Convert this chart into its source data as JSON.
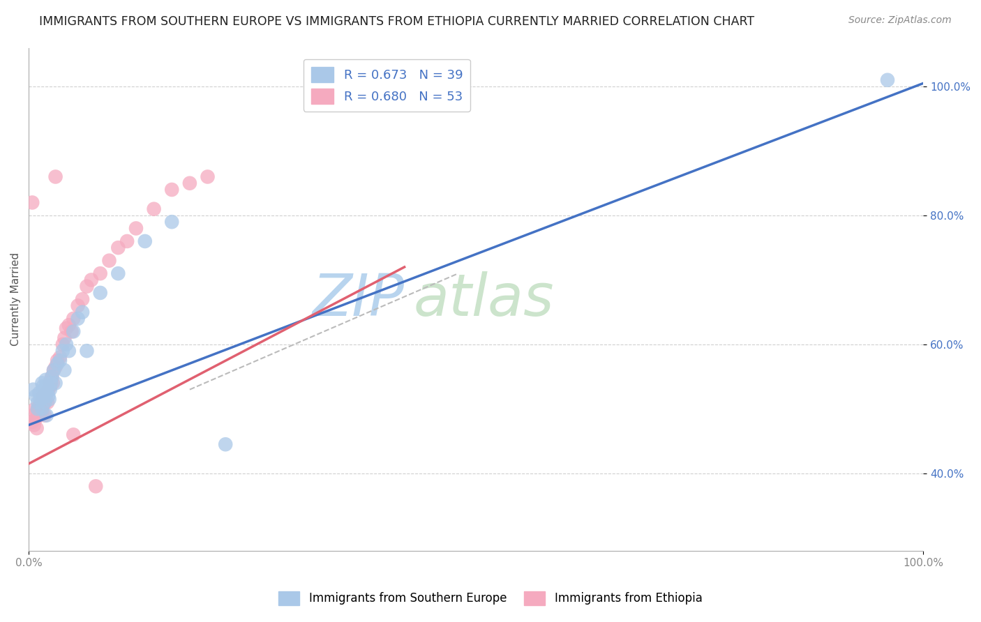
{
  "title": "IMMIGRANTS FROM SOUTHERN EUROPE VS IMMIGRANTS FROM ETHIOPIA CURRENTLY MARRIED CORRELATION CHART",
  "source": "Source: ZipAtlas.com",
  "ylabel": "Currently Married",
  "watermark": "ZIPatlas",
  "legend1_label": "R = 0.673   N = 39",
  "legend2_label": "R = 0.680   N = 53",
  "series1_name": "Immigrants from Southern Europe",
  "series2_name": "Immigrants from Ethiopia",
  "series1_color": "#aac8e8",
  "series2_color": "#f5aabf",
  "line1_color": "#4472c4",
  "line2_color": "#e06070",
  "xlim": [
    0,
    1.0
  ],
  "ylim": [
    0.28,
    1.06
  ],
  "ytick_positions": [
    0.4,
    0.6,
    0.8,
    1.0
  ],
  "ytick_labels": [
    "40.0%",
    "60.0%",
    "80.0%",
    "100.0%"
  ],
  "xtick_positions": [
    0.0,
    1.0
  ],
  "xtick_labels": [
    "0.0%",
    "100.0%"
  ],
  "grid_color": "#d0d0d0",
  "background_color": "#ffffff",
  "title_fontsize": 12.5,
  "source_fontsize": 10,
  "axis_label_fontsize": 11,
  "tick_fontsize": 11,
  "watermark_fontsize": 60,
  "watermark_color": "#cce0f0",
  "blue_dot_x": [
    0.005,
    0.008,
    0.01,
    0.01,
    0.012,
    0.013,
    0.015,
    0.015,
    0.016,
    0.017,
    0.018,
    0.018,
    0.019,
    0.02,
    0.02,
    0.021,
    0.022,
    0.023,
    0.024,
    0.025,
    0.026,
    0.028,
    0.03,
    0.032,
    0.035,
    0.038,
    0.04,
    0.042,
    0.045,
    0.05,
    0.055,
    0.06,
    0.065,
    0.08,
    0.1,
    0.13,
    0.16,
    0.22,
    0.96
  ],
  "blue_dot_y": [
    0.53,
    0.52,
    0.5,
    0.51,
    0.525,
    0.515,
    0.54,
    0.5,
    0.535,
    0.53,
    0.51,
    0.52,
    0.545,
    0.49,
    0.535,
    0.53,
    0.52,
    0.515,
    0.53,
    0.54,
    0.55,
    0.56,
    0.54,
    0.57,
    0.575,
    0.59,
    0.56,
    0.6,
    0.59,
    0.62,
    0.64,
    0.65,
    0.59,
    0.68,
    0.71,
    0.76,
    0.79,
    0.445,
    1.01
  ],
  "pink_dot_x": [
    0.004,
    0.005,
    0.006,
    0.007,
    0.008,
    0.009,
    0.01,
    0.011,
    0.012,
    0.013,
    0.014,
    0.015,
    0.016,
    0.016,
    0.017,
    0.018,
    0.018,
    0.019,
    0.02,
    0.021,
    0.022,
    0.023,
    0.024,
    0.025,
    0.026,
    0.027,
    0.028,
    0.03,
    0.032,
    0.035,
    0.038,
    0.04,
    0.042,
    0.045,
    0.048,
    0.05,
    0.055,
    0.06,
    0.065,
    0.07,
    0.08,
    0.09,
    0.1,
    0.11,
    0.12,
    0.14,
    0.16,
    0.18,
    0.2,
    0.05,
    0.075,
    0.03,
    0.004
  ],
  "pink_dot_y": [
    0.48,
    0.49,
    0.475,
    0.5,
    0.485,
    0.47,
    0.5,
    0.49,
    0.505,
    0.495,
    0.51,
    0.495,
    0.52,
    0.505,
    0.515,
    0.51,
    0.49,
    0.52,
    0.525,
    0.51,
    0.53,
    0.54,
    0.535,
    0.545,
    0.55,
    0.54,
    0.56,
    0.565,
    0.575,
    0.58,
    0.6,
    0.61,
    0.625,
    0.63,
    0.62,
    0.64,
    0.66,
    0.67,
    0.69,
    0.7,
    0.71,
    0.73,
    0.75,
    0.76,
    0.78,
    0.81,
    0.84,
    0.85,
    0.86,
    0.46,
    0.38,
    0.86,
    0.82
  ],
  "blue_line_x0": 0.0,
  "blue_line_y0": 0.475,
  "blue_line_x1": 1.0,
  "blue_line_y1": 1.005,
  "pink_line_x0": 0.0,
  "pink_line_y0": 0.415,
  "pink_line_x1": 0.42,
  "pink_line_y1": 0.72,
  "dash_line_x0": 0.18,
  "dash_line_y0": 0.53,
  "dash_line_x1": 0.48,
  "dash_line_y1": 0.71
}
